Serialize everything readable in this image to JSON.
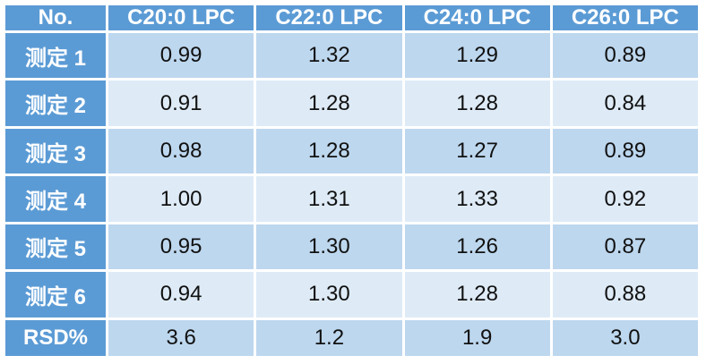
{
  "table": {
    "headers": [
      "No.",
      "C20:0 LPC",
      "C22:0 LPC",
      "C24:0 LPC",
      "C26:0 LPC"
    ],
    "rows": [
      {
        "label": "测定 1",
        "values": [
          "0.99",
          "1.32",
          "1.29",
          "0.89"
        ]
      },
      {
        "label": "测定 2",
        "values": [
          "0.91",
          "1.28",
          "1.28",
          "0.84"
        ]
      },
      {
        "label": "测定 3",
        "values": [
          "0.98",
          "1.28",
          "1.27",
          "0.89"
        ]
      },
      {
        "label": "测定 4",
        "values": [
          "1.00",
          "1.31",
          "1.33",
          "0.92"
        ]
      },
      {
        "label": "测定 5",
        "values": [
          "0.95",
          "1.30",
          "1.26",
          "0.87"
        ]
      },
      {
        "label": "测定 6",
        "values": [
          "0.94",
          "1.30",
          "1.28",
          "0.88"
        ]
      },
      {
        "label": "RSD%",
        "values": [
          "3.6",
          "1.2",
          "1.9",
          "3.0"
        ]
      }
    ]
  },
  "colors": {
    "header_bg": "#5b9bd5",
    "row_odd_bg": "#bdd7ee",
    "row_even_bg": "#deebf7",
    "header_text": "#ffffff",
    "cell_text": "#111111"
  }
}
